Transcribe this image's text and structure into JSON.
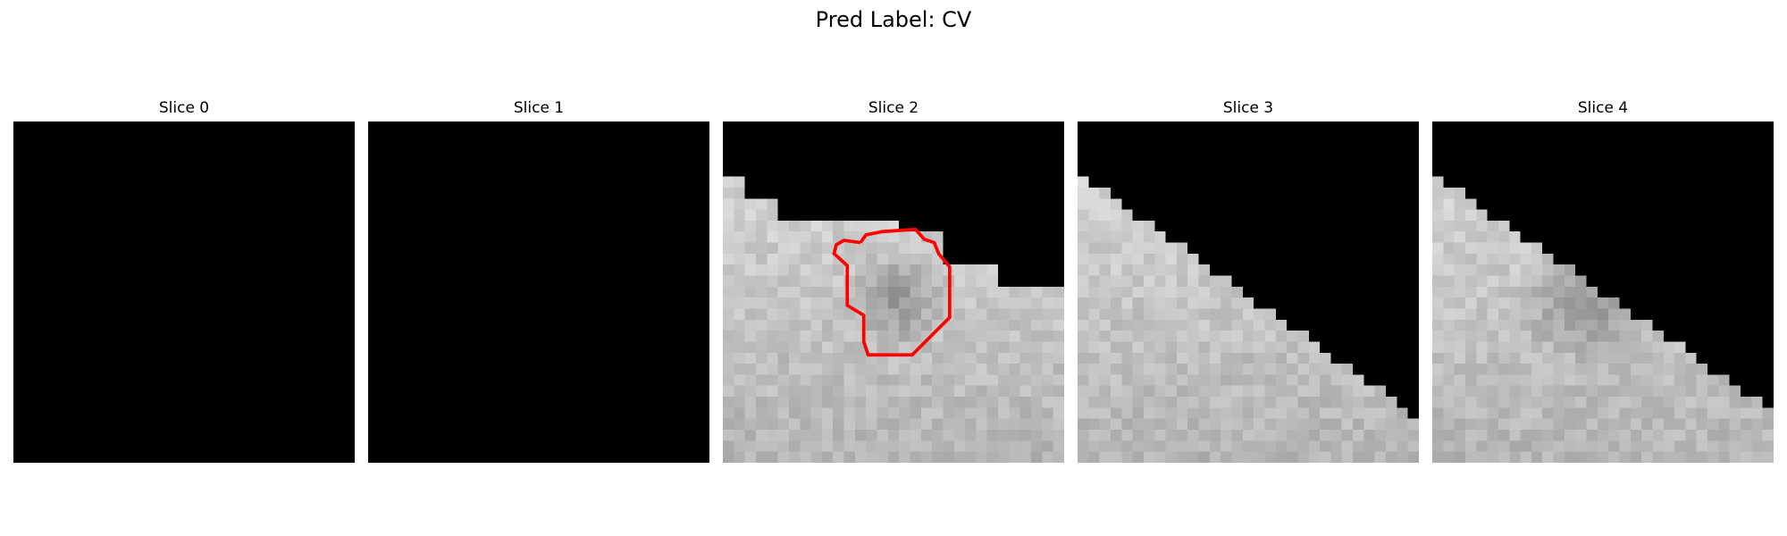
{
  "title": "Pred Label: CV",
  "slices": [
    {
      "label": "Slice 0"
    },
    {
      "label": "Slice 1"
    },
    {
      "label": "Slice 2"
    },
    {
      "label": "Slice 3"
    },
    {
      "label": "Slice 4"
    }
  ],
  "colors": {
    "background": "#000000",
    "contour": "#ff0000"
  }
}
